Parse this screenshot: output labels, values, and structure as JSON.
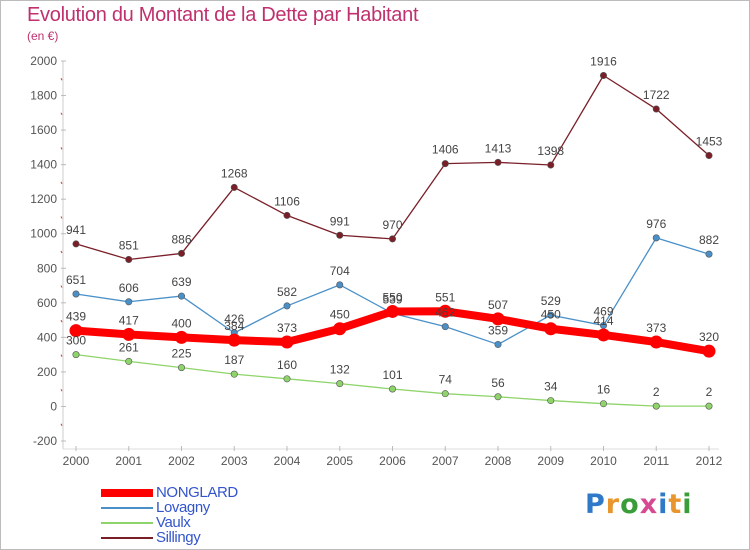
{
  "title": "Evolution du Montant de la Dette par Habitant",
  "subtitle": "(en €)",
  "logo": {
    "text": "Proxiti",
    "colors": [
      "#2f79c9",
      "#e8962d",
      "#3a9d3a",
      "#d64a92",
      "#2f79c9",
      "#e8962d",
      "#3a9d3a"
    ]
  },
  "chart_data": {
    "type": "line",
    "x": [
      "2000",
      "2001",
      "2002",
      "2003",
      "2004",
      "2005",
      "2006",
      "2007",
      "2008",
      "2009",
      "2010",
      "2011",
      "2012"
    ],
    "yticks": [
      "2000",
      "1800",
      "1600",
      "1400",
      "1200",
      "1000",
      "800",
      "600",
      "400",
      "200",
      "0",
      "-200"
    ],
    "ylim": [
      -200,
      2000
    ],
    "grid": false,
    "legend_position": "bottom-left",
    "series": [
      {
        "name": "Sillingy",
        "color": "#7a1f28",
        "values": [
          941,
          851,
          886,
          1268,
          1106,
          991,
          970,
          1406,
          1413,
          1398,
          1916,
          1722,
          1453
        ]
      },
      {
        "name": "Lovagny",
        "color": "#4a90c8",
        "values": [
          651,
          606,
          639,
          426,
          582,
          704,
          539,
          462,
          359,
          529,
          469,
          976,
          882
        ]
      },
      {
        "name": "Vaulx",
        "color": "#8ed46a",
        "values": [
          300,
          261,
          225,
          187,
          160,
          132,
          101,
          74,
          56,
          34,
          16,
          2,
          2
        ]
      },
      {
        "name": "NONGLARD",
        "color": "#ff0000",
        "values": [
          439,
          417,
          400,
          384,
          373,
          450,
          550,
          551,
          507,
          450,
          414,
          373,
          320
        ]
      }
    ],
    "legend": [
      "NONGLARD",
      "Lovagny",
      "Vaulx",
      "Sillingy"
    ]
  }
}
